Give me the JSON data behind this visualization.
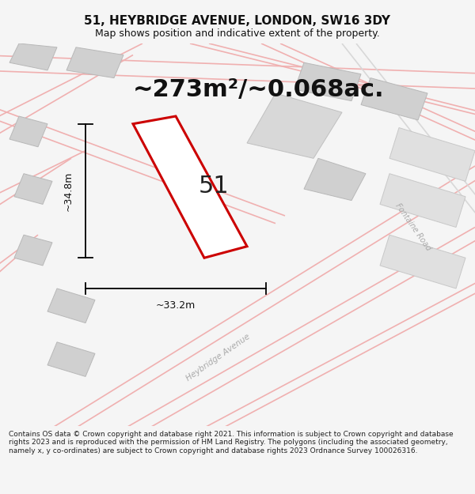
{
  "title": "51, HEYBRIDGE AVENUE, LONDON, SW16 3DY",
  "subtitle": "Map shows position and indicative extent of the property.",
  "area_text": "~273m²/~0.068ac.",
  "label_51": "51",
  "dim_height": "~34.8m",
  "dim_width": "~33.2m",
  "road_label1": "Heybridge Avenue",
  "road_label2": "Fontaine Road",
  "footer": "Contains OS data © Crown copyright and database right 2021. This information is subject to Crown copyright and database rights 2023 and is reproduced with the permission of HM Land Registry. The polygons (including the associated geometry, namely x, y co-ordinates) are subject to Crown copyright and database rights 2023 Ordnance Survey 100026316.",
  "bg_color": "#f5f5f5",
  "map_bg": "#f8f8f8",
  "plot_color": "#cc0000",
  "road_color": "#f0b0b0",
  "road_color2": "#d8d8d8",
  "building_color": "#d0d0d0",
  "building_edge": "#b8b8b8",
  "road_label_color": "#aaaaaa",
  "title_fontsize": 11,
  "subtitle_fontsize": 9,
  "area_fontsize": 22,
  "label51_fontsize": 22,
  "dim_fontsize": 9,
  "footer_fontsize": 6.5
}
